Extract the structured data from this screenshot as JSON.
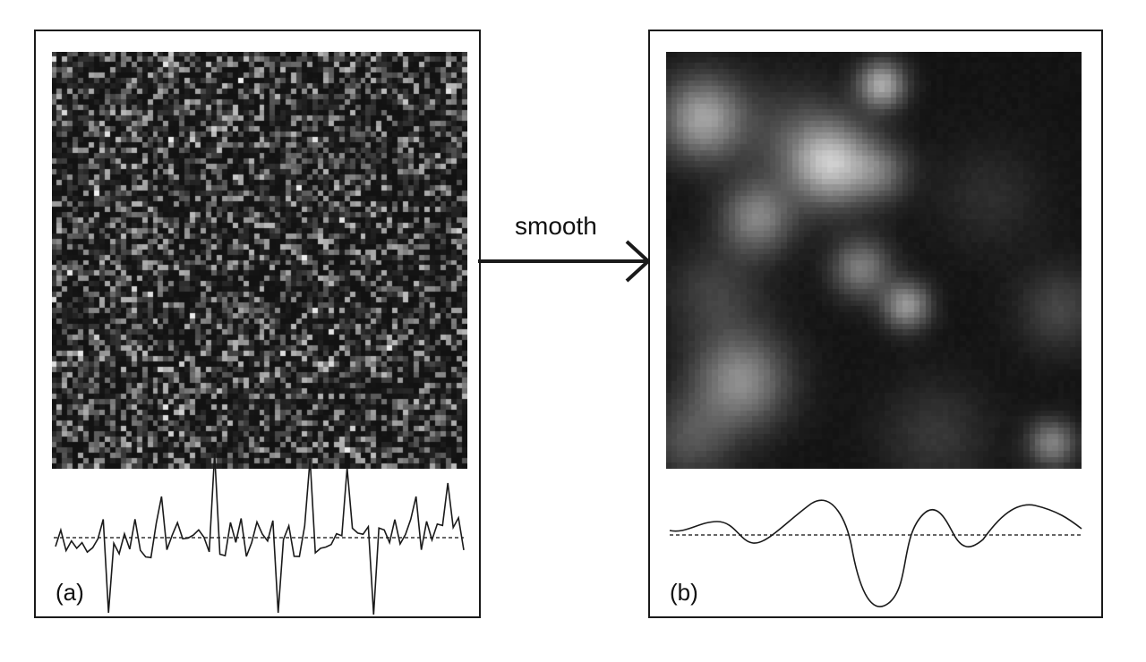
{
  "panels": {
    "a": {
      "label": "(a)"
    },
    "b": {
      "label": "(b)"
    }
  },
  "arrow": {
    "label": "smooth"
  },
  "colors": {
    "ink": "#1a1a1a",
    "image_background": "#161616",
    "dashed_line": "#333333"
  }
}
